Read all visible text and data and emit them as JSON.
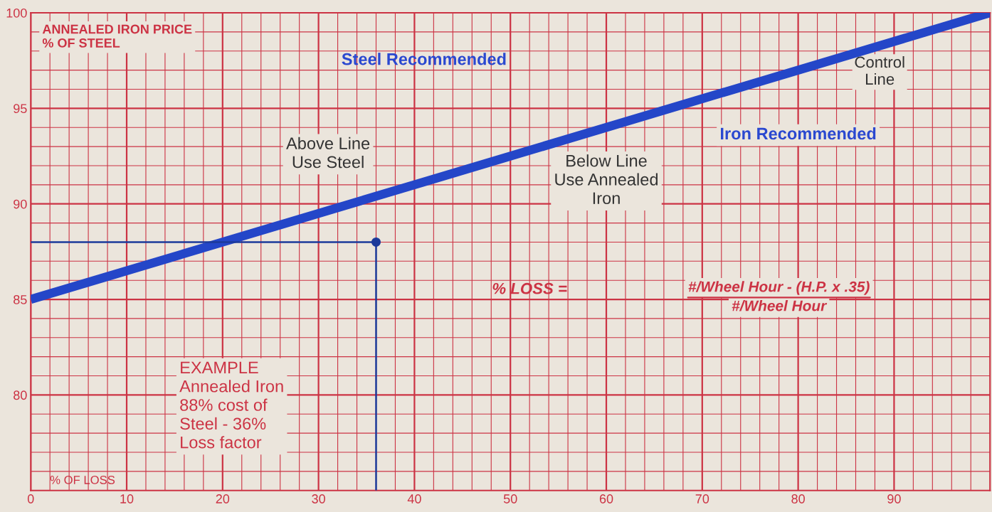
{
  "chart_data": {
    "type": "line",
    "ylabel": "ANNEALED IRON PRICE\n% OF STEEL",
    "xlabel": "% OF LOSS",
    "xlim": [
      0,
      100
    ],
    "ylim": [
      75,
      100
    ],
    "xticks": [
      0,
      {
        "value": 2,
        "label": null
      },
      {
        "value": 4,
        "label": null
      },
      {
        "value": 6,
        "label": null
      },
      {
        "value": 8,
        "label": null
      },
      10,
      {
        "value": 12,
        "label": null
      },
      {
        "value": 14,
        "label": null
      },
      {
        "value": 16,
        "label": null
      },
      {
        "value": 18,
        "label": null
      },
      20,
      {
        "value": 22,
        "label": null
      },
      {
        "value": 24,
        "label": null
      },
      {
        "value": 26,
        "label": null
      },
      {
        "value": 28,
        "label": null
      },
      30,
      {
        "value": 32,
        "label": null
      },
      {
        "value": 34,
        "label": null
      },
      {
        "value": 36,
        "label": null
      },
      {
        "value": 38,
        "label": null
      },
      40,
      {
        "value": 42,
        "label": null
      },
      {
        "value": 44,
        "label": null
      },
      {
        "value": 46,
        "label": null
      },
      {
        "value": 48,
        "label": null
      },
      50,
      {
        "value": 52,
        "label": null
      },
      {
        "value": 54,
        "label": null
      },
      {
        "value": 56,
        "label": null
      },
      {
        "value": 58,
        "label": null
      },
      60,
      {
        "value": 62,
        "label": null
      },
      {
        "value": 64,
        "label": null
      },
      {
        "value": 66,
        "label": null
      },
      {
        "value": 68,
        "label": null
      },
      70,
      {
        "value": 72,
        "label": null
      },
      {
        "value": 74,
        "label": null
      },
      {
        "value": 76,
        "label": null
      },
      {
        "value": 78,
        "label": null
      },
      80,
      {
        "value": 82,
        "label": null
      },
      {
        "value": 84,
        "label": null
      },
      {
        "value": 86,
        "label": null
      },
      {
        "value": 88,
        "label": null
      },
      90,
      {
        "value": 92,
        "label": null
      },
      {
        "value": 94,
        "label": null
      },
      {
        "value": 96,
        "label": null
      },
      {
        "value": 98,
        "label": null
      }
    ],
    "yticks": [
      {
        "value": 76,
        "label": null
      },
      {
        "value": 77,
        "label": null
      },
      {
        "value": 78,
        "label": null
      },
      {
        "value": 79,
        "label": null
      },
      80,
      {
        "value": 81,
        "label": null
      },
      {
        "value": 82,
        "label": null
      },
      {
        "value": 83,
        "label": null
      },
      {
        "value": 84,
        "label": null
      },
      85,
      {
        "value": 86,
        "label": null
      },
      {
        "value": 87,
        "label": null
      },
      {
        "value": 88,
        "label": null
      },
      {
        "value": 89,
        "label": null
      },
      90,
      {
        "value": 91,
        "label": null
      },
      {
        "value": 92,
        "label": null
      },
      {
        "value": 93,
        "label": null
      },
      {
        "value": 94,
        "label": null
      },
      95,
      {
        "value": 96,
        "label": null
      },
      {
        "value": 97,
        "label": null
      },
      {
        "value": 98,
        "label": null
      },
      {
        "value": 99,
        "label": null
      },
      100
    ],
    "grid": true,
    "series": [
      {
        "name": "Control Line",
        "color": "#2446c8",
        "x": [
          0,
          100
        ],
        "values": [
          85,
          100
        ]
      },
      {
        "type": "line",
        "color": "#1c3a9a",
        "x": [
          0,
          36,
          36
        ],
        "values": [
          88,
          88,
          75
        ]
      },
      {
        "type": "scatter",
        "color": "#1c3a9a",
        "x": [
          36
        ],
        "values": [
          88
        ]
      }
    ],
    "annotations": [
      "Steel Recommended",
      "Iron Recommended",
      "Above Line\nUse Steel",
      "Below Line\nUse Annealed\nIron",
      "% LOSS =",
      "#/Wheel Hour - (H.P. x .35)",
      "#/Wheel Hour",
      "EXAMPLE\nAnnealed Iron\n88% cost of\nSteel - 36%\nLoss factor"
    ]
  }
}
